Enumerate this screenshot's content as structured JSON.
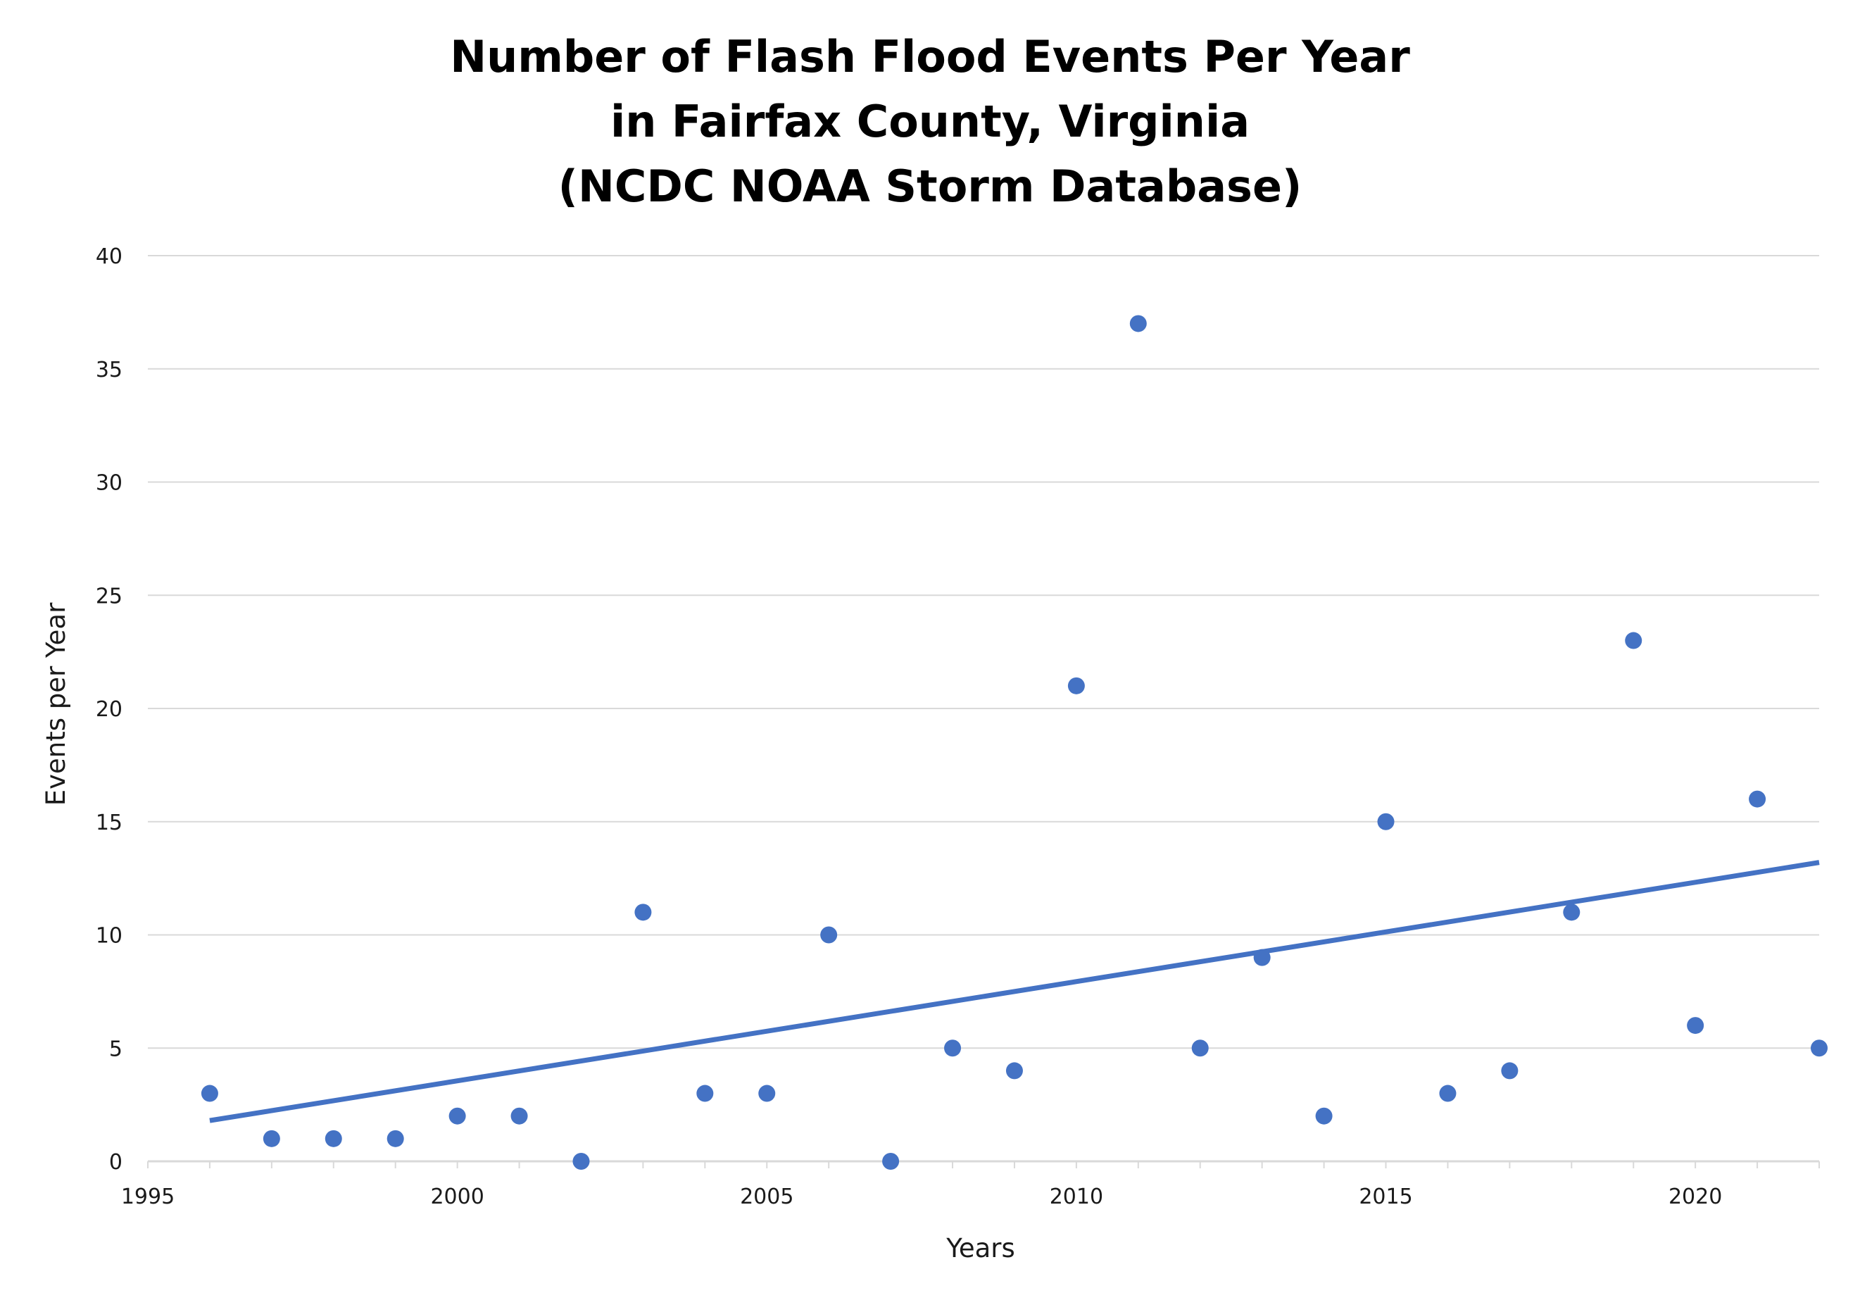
{
  "chart_data": {
    "type": "scatter",
    "title_lines": [
      "Number of Flash Flood Events Per Year",
      "in Fairfax County, Virginia",
      "(NCDC NOAA Storm Database)"
    ],
    "xlabel": "Years",
    "ylabel": "Events per Year",
    "xlim": [
      1995,
      2022
    ],
    "ylim": [
      0,
      40
    ],
    "x_ticks": [
      1995,
      2000,
      2005,
      2010,
      2015,
      2020
    ],
    "y_ticks": [
      0,
      5,
      10,
      15,
      20,
      25,
      30,
      35,
      40
    ],
    "grid": true,
    "legend": "none",
    "series_color": "#4472C4",
    "trendline_color": "#4472C4",
    "gridline_color": "#D9D9D9",
    "x": [
      1996,
      1997,
      1998,
      1999,
      2000,
      2001,
      2002,
      2003,
      2004,
      2005,
      2006,
      2007,
      2008,
      2009,
      2010,
      2011,
      2012,
      2013,
      2014,
      2015,
      2016,
      2017,
      2018,
      2019,
      2020,
      2021,
      2022
    ],
    "y": [
      3,
      1,
      1,
      1,
      2,
      2,
      0,
      11,
      3,
      3,
      10,
      0,
      5,
      4,
      21,
      37,
      5,
      9,
      2,
      15,
      3,
      4,
      11,
      23,
      6,
      16,
      5
    ],
    "trendline": {
      "type": "linear",
      "x": [
        1996,
        2022
      ],
      "y": [
        1.8,
        13.2
      ]
    }
  }
}
